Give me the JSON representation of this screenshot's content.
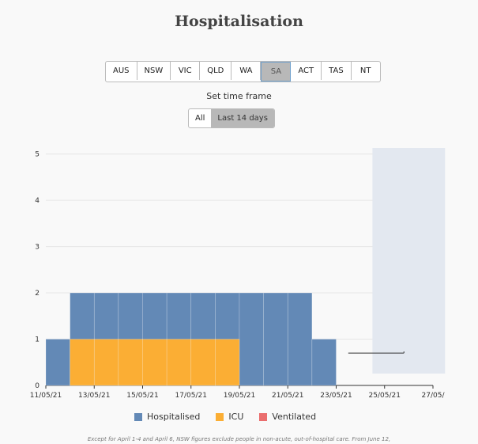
{
  "title": "Hospitalisation",
  "state_tabs": [
    {
      "label": "AUS",
      "active": false
    },
    {
      "label": "NSW",
      "active": false
    },
    {
      "label": "VIC",
      "active": false
    },
    {
      "label": "QLD",
      "active": false
    },
    {
      "label": "WA",
      "active": false
    },
    {
      "label": "SA",
      "active": true
    },
    {
      "label": "ACT",
      "active": false
    },
    {
      "label": "TAS",
      "active": false
    },
    {
      "label": "NT",
      "active": false
    }
  ],
  "timeframe": {
    "label": "Set time frame",
    "options": [
      {
        "label": "All",
        "active": false
      },
      {
        "label": "Last 14 days",
        "active": true
      }
    ]
  },
  "legend": [
    {
      "label": "Hospitalised",
      "color": "#6389b6"
    },
    {
      "label": "ICU",
      "color": "#fbae34"
    },
    {
      "label": "Ventilated",
      "color": "#ea6e6e"
    }
  ],
  "footnote": "Except for April 1-4 and April 6, NSW figures exclude people in non-acute, out-of-hospital care. From June 12,",
  "chart_data": {
    "type": "bar",
    "stacked": false,
    "x": [
      "11/05/21",
      "12/05/21",
      "13/05/21",
      "14/05/21",
      "15/05/21",
      "16/05/21",
      "17/05/21",
      "18/05/21",
      "19/05/21",
      "20/05/21",
      "21/05/21",
      "22/05/21"
    ],
    "series": [
      {
        "name": "Hospitalised",
        "color": "#6389b6",
        "values": [
          1,
          2,
          2,
          2,
          2,
          2,
          2,
          2,
          2,
          2,
          2,
          1
        ]
      },
      {
        "name": "ICU",
        "color": "#fbae34",
        "values": [
          0,
          1,
          1,
          1,
          1,
          1,
          1,
          1,
          0,
          0,
          0,
          0
        ]
      },
      {
        "name": "Ventilated",
        "color": "#ea6e6e",
        "values": [
          0,
          0,
          0,
          0,
          0,
          0,
          0,
          0,
          0,
          0,
          0,
          0
        ]
      }
    ],
    "xticks": [
      "11/05/21",
      "13/05/21",
      "15/05/21",
      "17/05/21",
      "19/05/21",
      "21/05/21",
      "23/05/21",
      "25/05/21",
      "27/05/"
    ],
    "yticks": [
      0,
      1,
      2,
      3,
      4,
      5
    ],
    "ylim": [
      0,
      5.25
    ],
    "shaded_region": {
      "from": "24/05/21",
      "to": "27/05/21",
      "color": "#e3e8f0"
    },
    "grid": true
  }
}
